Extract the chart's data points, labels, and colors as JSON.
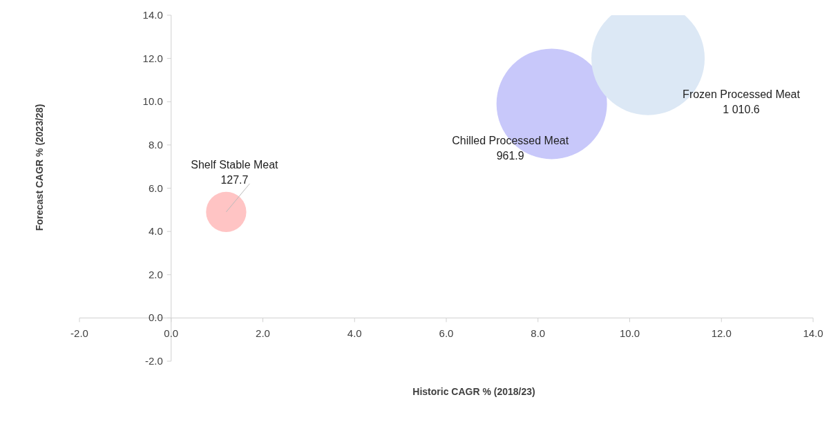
{
  "chart_data": {
    "type": "bubble",
    "xlabel": "Historic CAGR % (2018/23)",
    "ylabel": "Forecast CAGR % (2023/28)",
    "xlim": [
      -2,
      14
    ],
    "ylim": [
      -2,
      14
    ],
    "xticks": [
      {
        "value": -2,
        "label": "-2.0"
      },
      {
        "value": 0,
        "label": "0.0"
      },
      {
        "value": 2,
        "label": "2.0"
      },
      {
        "value": 4,
        "label": "4.0"
      },
      {
        "value": 6,
        "label": "6.0"
      },
      {
        "value": 8,
        "label": "8.0"
      },
      {
        "value": 10,
        "label": "10.0"
      },
      {
        "value": 12,
        "label": "12.0"
      },
      {
        "value": 14,
        "label": "14.0"
      }
    ],
    "yticks": [
      {
        "value": -2,
        "label": "-2.0"
      },
      {
        "value": 0,
        "label": "0.0"
      },
      {
        "value": 2,
        "label": "2.0"
      },
      {
        "value": 4,
        "label": "4.0"
      },
      {
        "value": 6,
        "label": "6.0"
      },
      {
        "value": 8,
        "label": "8.0"
      },
      {
        "value": 10,
        "label": "10.0"
      },
      {
        "value": 12,
        "label": "12.0"
      },
      {
        "value": 14,
        "label": "14.0"
      }
    ],
    "grid": false,
    "series": [
      {
        "name": "Shelf Stable Meat",
        "color": "#ffc4c4",
        "x": [
          1.2
        ],
        "values": [
          4.9
        ],
        "sizes": [
          127.7
        ],
        "value_labels": [
          "127.7"
        ]
      },
      {
        "name": "Chilled Processed Meat",
        "color": "#c8c8fa",
        "x": [
          8.3
        ],
        "values": [
          9.9
        ],
        "sizes": [
          961.9
        ],
        "value_labels": [
          "961.9"
        ]
      },
      {
        "name": "Frozen Processed Meat",
        "color": "#dce8f5",
        "x": [
          10.4
        ],
        "values": [
          12.0
        ],
        "sizes": [
          1010.6
        ],
        "value_labels": [
          "1 010.6"
        ]
      }
    ]
  }
}
